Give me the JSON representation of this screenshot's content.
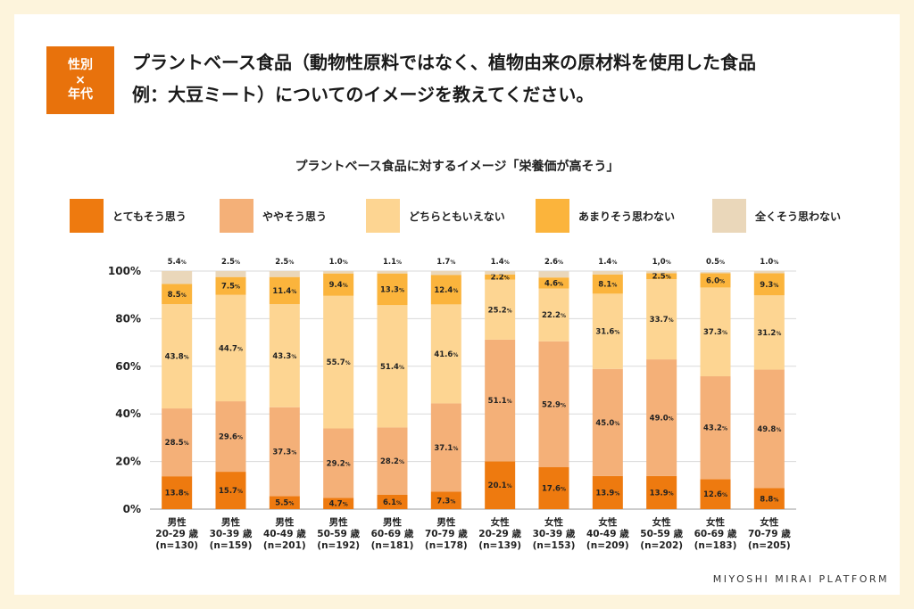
{
  "header": {
    "badge": [
      "性別",
      "×",
      "年代"
    ],
    "title_lines": [
      "プラントベース食品（動物性原料ではなく、植物由来の原材料を使用した食品",
      "例：大豆ミート）についてのイメージを教えてください。"
    ]
  },
  "footer": {
    "brand": "MIYOSHI MIRAI PLATFORM"
  },
  "colors": {
    "background": "#fdf4dc",
    "accent": "#e8720c",
    "s1": "#ee7a0f",
    "s2": "#f4b078",
    "s3": "#fdd592",
    "s4": "#fbb43c",
    "s5": "#ead7ba"
  },
  "chart_data": {
    "type": "bar",
    "stacked": true,
    "title": "プラントベース食品に対するイメージ「栄養価が高そう」",
    "ylim": [
      0,
      100
    ],
    "yticks": [
      "0%",
      "20%",
      "40%",
      "60%",
      "80%",
      "100%"
    ],
    "grid": true,
    "legend_position": "top",
    "categories": [
      [
        "男性",
        "20-29 歳",
        "(n=130)"
      ],
      [
        "男性",
        "30-39 歳",
        "(n=159)"
      ],
      [
        "男性",
        "40-49 歳",
        "(n=201)"
      ],
      [
        "男性",
        "50-59 歳",
        "(n=192)"
      ],
      [
        "男性",
        "60-69 歳",
        "(n=181)"
      ],
      [
        "男性",
        "70-79 歳",
        "(n=178)"
      ],
      [
        "女性",
        "20-29 歳",
        "(n=139)"
      ],
      [
        "女性",
        "30-39 歳",
        "(n=153)"
      ],
      [
        "女性",
        "40-49 歳",
        "(n=209)"
      ],
      [
        "女性",
        "50-59 歳",
        "(n=202)"
      ],
      [
        "女性",
        "60-69 歳",
        "(n=183)"
      ],
      [
        "女性",
        "70-79 歳",
        "(n=205)"
      ]
    ],
    "series": [
      {
        "name": "とてもそう思う",
        "color": "#ee7a0f",
        "values": [
          13.8,
          15.7,
          5.5,
          4.7,
          6.1,
          7.3,
          20.1,
          17.6,
          13.9,
          13.9,
          12.6,
          8.8
        ],
        "labels": [
          "13.8",
          "15.7",
          "5.5",
          "4.7",
          "6.1",
          "7.3",
          "20.1",
          "17.6",
          "13.9",
          "13.9",
          "12.6",
          "8.8"
        ]
      },
      {
        "name": "ややそう思う",
        "color": "#f4b078",
        "values": [
          28.5,
          29.6,
          37.3,
          29.2,
          28.2,
          37.1,
          51.1,
          52.9,
          45.0,
          49.0,
          43.2,
          49.8
        ],
        "labels": [
          "28.5",
          "29.6",
          "37.3",
          "29.2",
          "28.2",
          "37.1",
          "51.1",
          "52.9",
          "45.0",
          "49.0",
          "43.2",
          "49.8"
        ]
      },
      {
        "name": "どちらともいえない",
        "color": "#fdd592",
        "values": [
          43.8,
          44.7,
          43.3,
          55.7,
          51.4,
          41.6,
          25.2,
          22.2,
          31.6,
          33.7,
          37.3,
          31.2
        ],
        "labels": [
          "43.8",
          "44.7",
          "43.3",
          "55.7",
          "51.4",
          "41.6",
          "25.2",
          "22.2",
          "31.6",
          "33.7",
          "37.3",
          "31.2"
        ]
      },
      {
        "name": "あまりそう思わない",
        "color": "#fbb43c",
        "values": [
          8.5,
          7.5,
          11.4,
          9.4,
          13.3,
          12.4,
          2.2,
          4.6,
          8.1,
          2.5,
          6.0,
          9.3
        ],
        "labels": [
          "8.5",
          "7.5",
          "11.4",
          "9.4",
          "13.3",
          "12.4",
          "2.2",
          "4.6",
          "8.1",
          "2.5",
          "6.0",
          "9.3"
        ]
      },
      {
        "name": "全くそう思わない",
        "color": "#ead7ba",
        "values": [
          5.4,
          2.5,
          2.5,
          1.0,
          1.1,
          1.7,
          1.4,
          2.6,
          1.4,
          1.0,
          0.5,
          1.0
        ],
        "labels": [
          "5.4",
          "2.5",
          "2.5",
          "1.0",
          "1.1",
          "1.7",
          "1.4",
          "2.6",
          "1.4",
          "1,0",
          "0.5",
          "1.0"
        ]
      }
    ],
    "value_suffix": "%"
  }
}
